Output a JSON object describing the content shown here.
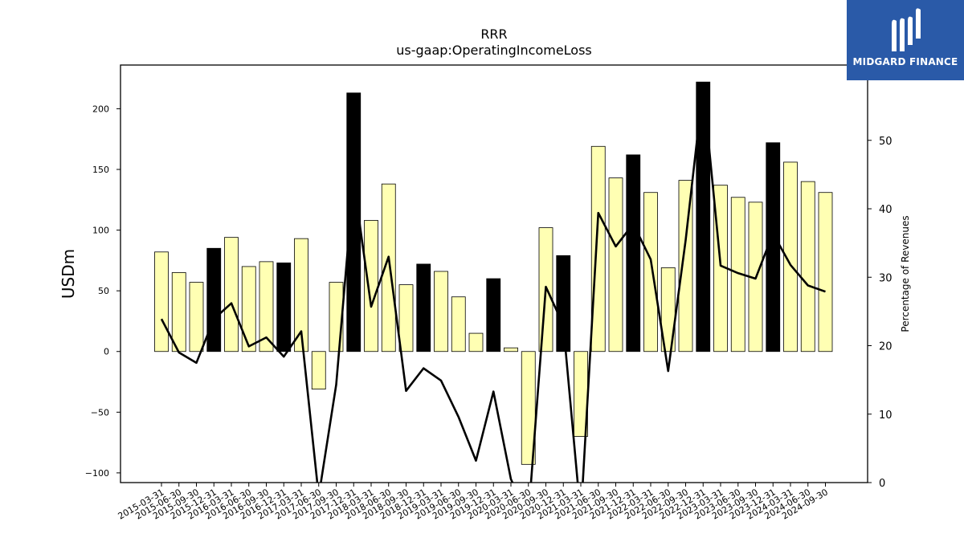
{
  "chart_data": {
    "type": "bar",
    "title": "RRR",
    "subtitle": "us-gaap:OperatingIncomeLoss",
    "ylabel": "USDm",
    "ylabel_right": "Percentage of Revenues",
    "ylim": [
      -108,
      236
    ],
    "ylim_right": [
      0,
      61
    ],
    "yticks": [
      -100,
      -50,
      0,
      50,
      100,
      150,
      200
    ],
    "yticks_right": [
      0,
      10,
      20,
      30,
      40,
      50
    ],
    "grid": false,
    "colors": {
      "quarter_bar": "#ffffb3",
      "annual_bar": "#000000",
      "line": "#000000",
      "edge": "#000000"
    },
    "categories": [
      "2015-03-31",
      "2015-06-30",
      "2015-09-30",
      "2015-12-31",
      "2016-03-31",
      "2016-06-30",
      "2016-09-30",
      "2016-12-31",
      "2017-03-31",
      "2017-06-30",
      "2017-09-30",
      "2017-12-31",
      "2018-03-31",
      "2018-06-30",
      "2018-09-30",
      "2018-12-31",
      "2019-03-31",
      "2019-06-30",
      "2019-09-30",
      "2019-12-31",
      "2020-03-31",
      "2020-06-30",
      "2020-09-30",
      "2020-12-31",
      "2021-03-31",
      "2021-06-30",
      "2021-09-30",
      "2021-12-31",
      "2022-03-31",
      "2022-06-30",
      "2022-09-30",
      "2022-12-31",
      "2023-03-31",
      "2023-06-30",
      "2023-09-30",
      "2023-12-31",
      "2024-03-31",
      "2024-06-30",
      "2024-09-30"
    ],
    "series": [
      {
        "kind": "bar",
        "axis": "left",
        "values": [
          82,
          65,
          57,
          85,
          94,
          70,
          74,
          73,
          93,
          -31,
          57,
          213,
          108,
          138,
          55,
          72,
          66,
          45,
          15,
          60,
          3,
          -93,
          102,
          79,
          -70,
          169,
          143,
          162,
          131,
          69,
          141,
          222,
          137,
          127,
          123,
          172,
          156,
          140,
          131
        ],
        "annual": [
          false,
          false,
          false,
          true,
          false,
          false,
          false,
          true,
          false,
          false,
          false,
          true,
          false,
          false,
          false,
          true,
          false,
          false,
          false,
          true,
          false,
          false,
          false,
          true,
          false,
          false,
          false,
          true,
          false,
          false,
          false,
          true,
          false,
          false,
          false,
          true,
          false,
          false,
          false
        ]
      },
      {
        "kind": "line",
        "axis": "right",
        "values": [
          23.9,
          19.0,
          17.5,
          23.9,
          26.2,
          19.9,
          21.2,
          18.4,
          22.1,
          -2.0,
          14.3,
          44.2,
          25.7,
          33.0,
          13.4,
          16.7,
          14.9,
          9.6,
          3.2,
          13.3,
          0.5,
          -5.0,
          28.6,
          23.0,
          -5.0,
          39.4,
          34.5,
          37.8,
          32.6,
          16.3,
          35.4,
          57.9,
          31.7,
          30.6,
          29.8,
          36.4,
          31.8,
          28.8,
          27.9
        ]
      }
    ]
  },
  "logo": {
    "name": "MIDGARD FINANCE"
  }
}
